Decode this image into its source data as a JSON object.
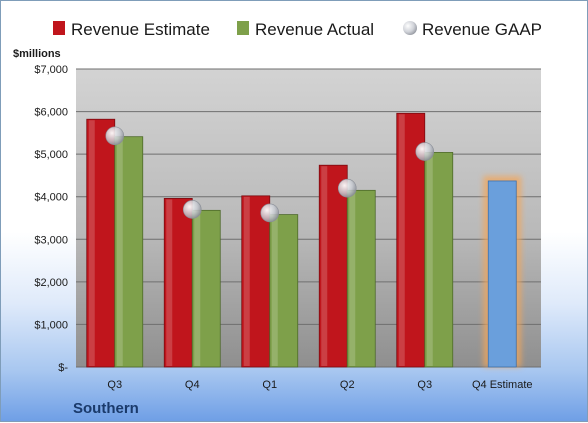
{
  "chart_data": {
    "type": "bar",
    "ylabel": "$millions",
    "company": "Southern",
    "categories": [
      "Q3",
      "Q4",
      "Q1",
      "Q2",
      "Q3",
      "Q4 Estimate"
    ],
    "ylim": [
      0,
      7000
    ],
    "yticks": [
      0,
      1000,
      2000,
      3000,
      4000,
      5000,
      6000,
      7000
    ],
    "ytick_labels": [
      "$-",
      "$1,000",
      "$2,000",
      "$3,000",
      "$4,000",
      "$5,000",
      "$6,000",
      "$7,000"
    ],
    "grid": true,
    "legend": "top",
    "series": [
      {
        "name": "Revenue Estimate",
        "color": "#c0151c",
        "values": [
          5820,
          3960,
          4020,
          4740,
          5960,
          null
        ]
      },
      {
        "name": "Revenue Actual",
        "color": "#7ea04a",
        "values": [
          5410,
          3680,
          3580,
          4150,
          5040,
          null
        ]
      },
      {
        "name": "Revenue GAAP",
        "color": "#b8bcc4",
        "values": [
          5430,
          3700,
          3620,
          4200,
          5060,
          null
        ]
      }
    ],
    "estimate_bar": {
      "category": "Q4 Estimate",
      "value": 4370,
      "color": "#6a9fdc",
      "glow": "#f3a65a"
    }
  }
}
